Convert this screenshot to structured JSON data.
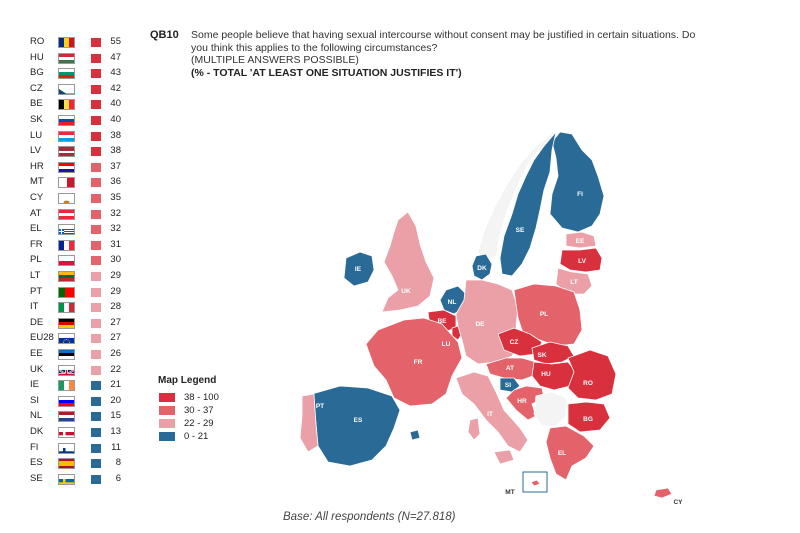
{
  "header": {
    "qid": "QB10",
    "question": "Some people believe that having sexual intercourse without consent may be justified in certain situations. Do you think this applies to the following circumstances?",
    "note": "(MULTIPLE ANSWERS POSSIBLE)",
    "total": "(% - TOTAL 'AT LEAST ONE SITUATION JUSTIFIES IT')"
  },
  "colors": {
    "c38_100": "#d9303e",
    "c30_37": "#e4636b",
    "c22_29": "#eaa0a6",
    "c0_21": "#2a6a96"
  },
  "ranking": [
    {
      "code": "RO",
      "value": "55",
      "band": "c38_100"
    },
    {
      "code": "HU",
      "value": "47",
      "band": "c38_100"
    },
    {
      "code": "BG",
      "value": "43",
      "band": "c38_100"
    },
    {
      "code": "CZ",
      "value": "42",
      "band": "c38_100"
    },
    {
      "code": "BE",
      "value": "40",
      "band": "c38_100"
    },
    {
      "code": "SK",
      "value": "40",
      "band": "c38_100"
    },
    {
      "code": "LU",
      "value": "38",
      "band": "c38_100"
    },
    {
      "code": "LV",
      "value": "38",
      "band": "c38_100"
    },
    {
      "code": "HR",
      "value": "37",
      "band": "c30_37"
    },
    {
      "code": "MT",
      "value": "36",
      "band": "c30_37"
    },
    {
      "code": "CY",
      "value": "35",
      "band": "c30_37"
    },
    {
      "code": "AT",
      "value": "32",
      "band": "c30_37"
    },
    {
      "code": "EL",
      "value": "32",
      "band": "c30_37"
    },
    {
      "code": "FR",
      "value": "31",
      "band": "c30_37"
    },
    {
      "code": "PL",
      "value": "30",
      "band": "c30_37"
    },
    {
      "code": "LT",
      "value": "29",
      "band": "c22_29"
    },
    {
      "code": "PT",
      "value": "29",
      "band": "c22_29"
    },
    {
      "code": "IT",
      "value": "28",
      "band": "c22_29"
    },
    {
      "code": "DE",
      "value": "27",
      "band": "c22_29"
    },
    {
      "code": "EU28",
      "value": "27",
      "band": "c22_29"
    },
    {
      "code": "EE",
      "value": "26",
      "band": "c22_29"
    },
    {
      "code": "UK",
      "value": "22",
      "band": "c22_29"
    },
    {
      "code": "IE",
      "value": "21",
      "band": "c0_21"
    },
    {
      "code": "SI",
      "value": "20",
      "band": "c0_21"
    },
    {
      "code": "NL",
      "value": "15",
      "band": "c0_21"
    },
    {
      "code": "DK",
      "value": "13",
      "band": "c0_21"
    },
    {
      "code": "FI",
      "value": "11",
      "band": "c0_21"
    },
    {
      "code": "ES",
      "value": "8",
      "band": "c0_21"
    },
    {
      "code": "SE",
      "value": "6",
      "band": "c0_21"
    }
  ],
  "legend": {
    "title": "Map Legend",
    "items": [
      {
        "label": "38 - 100",
        "band": "c38_100"
      },
      {
        "label": "30 - 37",
        "band": "c30_37"
      },
      {
        "label": "22 - 29",
        "band": "c22_29"
      },
      {
        "label": "0 - 21",
        "band": "c0_21"
      }
    ]
  },
  "map_labels": {
    "FI": "FI",
    "SE": "SE",
    "EE": "EE",
    "LV": "LV",
    "LT": "LT",
    "DK": "DK",
    "IE": "IE",
    "UK": "UK",
    "NL": "NL",
    "BE": "BE",
    "LU": "LU",
    "DE": "DE",
    "PL": "PL",
    "CZ": "CZ",
    "SK": "SK",
    "AT": "AT",
    "HU": "HU",
    "SI": "SI",
    "HR": "HR",
    "RO": "RO",
    "BG": "BG",
    "FR": "FR",
    "ES": "ES",
    "PT": "PT",
    "IT": "IT",
    "EL": "EL",
    "MT": "MT",
    "CY": "CY"
  },
  "base": "Base: All respondents (N=27.818)"
}
